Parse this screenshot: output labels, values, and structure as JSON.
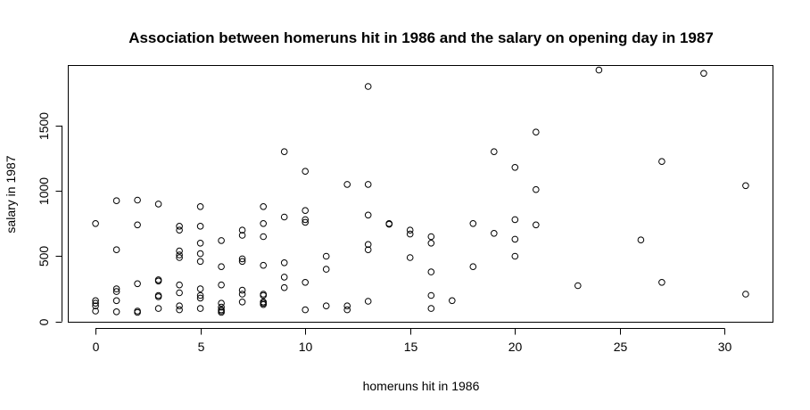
{
  "chart_data": {
    "type": "scatter",
    "title": "Association between homeruns hit in 1986 and the salary on opening day in 1987",
    "xlabel": "homeruns hit in 1986",
    "ylabel": "salary in 1987",
    "xlim": [
      -1.3,
      32.3
    ],
    "ylim": [
      -5,
      1960
    ],
    "xticks": [
      0,
      5,
      10,
      15,
      20,
      25,
      30
    ],
    "yticks": [
      0,
      500,
      1000,
      1500
    ],
    "points": [
      [
        0,
        750
      ],
      [
        0,
        160
      ],
      [
        0,
        140
      ],
      [
        0,
        120
      ],
      [
        0,
        80
      ],
      [
        1,
        925
      ],
      [
        1,
        550
      ],
      [
        1,
        250
      ],
      [
        1,
        230
      ],
      [
        1,
        160
      ],
      [
        1,
        75
      ],
      [
        2,
        930
      ],
      [
        2,
        740
      ],
      [
        2,
        290
      ],
      [
        2,
        80
      ],
      [
        2,
        70
      ],
      [
        3,
        900
      ],
      [
        3,
        320
      ],
      [
        3,
        310
      ],
      [
        3,
        200
      ],
      [
        3,
        190
      ],
      [
        3,
        100
      ],
      [
        4,
        730
      ],
      [
        4,
        700
      ],
      [
        4,
        540
      ],
      [
        4,
        510
      ],
      [
        4,
        490
      ],
      [
        4,
        280
      ],
      [
        4,
        220
      ],
      [
        4,
        120
      ],
      [
        4,
        90
      ],
      [
        5,
        880
      ],
      [
        5,
        730
      ],
      [
        5,
        600
      ],
      [
        5,
        520
      ],
      [
        5,
        460
      ],
      [
        5,
        250
      ],
      [
        5,
        200
      ],
      [
        5,
        180
      ],
      [
        5,
        100
      ],
      [
        6,
        620
      ],
      [
        6,
        420
      ],
      [
        6,
        280
      ],
      [
        6,
        140
      ],
      [
        6,
        110
      ],
      [
        6,
        90
      ],
      [
        6,
        80
      ],
      [
        6,
        70
      ],
      [
        7,
        700
      ],
      [
        7,
        660
      ],
      [
        7,
        480
      ],
      [
        7,
        460
      ],
      [
        7,
        240
      ],
      [
        7,
        210
      ],
      [
        7,
        150
      ],
      [
        8,
        880
      ],
      [
        8,
        750
      ],
      [
        8,
        650
      ],
      [
        8,
        430
      ],
      [
        8,
        210
      ],
      [
        8,
        200
      ],
      [
        8,
        150
      ],
      [
        8,
        140
      ],
      [
        8,
        130
      ],
      [
        9,
        1300
      ],
      [
        9,
        800
      ],
      [
        9,
        450
      ],
      [
        9,
        340
      ],
      [
        9,
        260
      ],
      [
        10,
        1150
      ],
      [
        10,
        850
      ],
      [
        10,
        780
      ],
      [
        10,
        760
      ],
      [
        10,
        300
      ],
      [
        10,
        90
      ],
      [
        11,
        500
      ],
      [
        11,
        400
      ],
      [
        11,
        120
      ],
      [
        12,
        1050
      ],
      [
        12,
        120
      ],
      [
        12,
        90
      ],
      [
        13,
        1800
      ],
      [
        13,
        1050
      ],
      [
        13,
        815
      ],
      [
        13,
        590
      ],
      [
        13,
        550
      ],
      [
        13,
        155
      ],
      [
        14,
        750
      ],
      [
        14,
        745
      ],
      [
        15,
        700
      ],
      [
        15,
        670
      ],
      [
        15,
        490
      ],
      [
        16,
        650
      ],
      [
        16,
        600
      ],
      [
        16,
        380
      ],
      [
        16,
        200
      ],
      [
        16,
        100
      ],
      [
        17,
        160
      ],
      [
        18,
        750
      ],
      [
        18,
        420
      ],
      [
        19,
        1300
      ],
      [
        19,
        675
      ],
      [
        20,
        1180
      ],
      [
        20,
        780
      ],
      [
        20,
        630
      ],
      [
        20,
        500
      ],
      [
        21,
        1450
      ],
      [
        21,
        1010
      ],
      [
        21,
        740
      ],
      [
        23,
        275
      ],
      [
        24,
        1925
      ],
      [
        26,
        625
      ],
      [
        27,
        1225
      ],
      [
        27,
        300
      ],
      [
        29,
        1900
      ],
      [
        31,
        1040
      ],
      [
        31,
        210
      ]
    ]
  }
}
